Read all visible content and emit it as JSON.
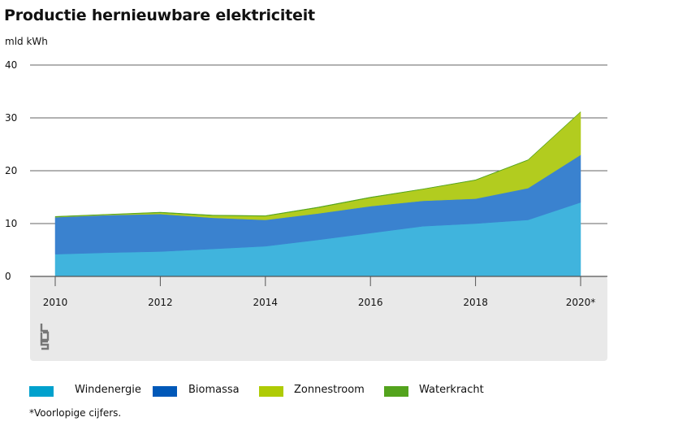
{
  "chart_data": {
    "type": "area",
    "title": "Productie hernieuwbare elektriciteit",
    "ylabel": "mld kWh",
    "xlabel": "",
    "x": [
      2010,
      2011,
      2012,
      2013,
      2014,
      2015,
      2016,
      2017,
      2018,
      2019,
      2020
    ],
    "x_tick_labels": [
      "2010",
      "2012",
      "2014",
      "2016",
      "2018",
      "2020*"
    ],
    "y_ticks": [
      "0",
      "10",
      "20",
      "30",
      "40"
    ],
    "ylim": [
      0,
      40
    ],
    "stacked": true,
    "grid": true,
    "legend_position": "bottom",
    "series": [
      {
        "name": "Windenergie",
        "color": "#40b4dd",
        "values": [
          4.2,
          4.5,
          4.7,
          5.2,
          5.7,
          6.9,
          8.2,
          9.5,
          10.0,
          10.7,
          14.0
        ]
      },
      {
        "name": "Biomassa",
        "color": "#3a82cf",
        "values": [
          7.0,
          7.1,
          7.1,
          5.9,
          5.0,
          5.0,
          5.1,
          4.8,
          4.7,
          6.0,
          9.0
        ]
      },
      {
        "name": "Zonnestroom",
        "color": "#b2cc1f",
        "values": [
          0.05,
          0.1,
          0.25,
          0.4,
          0.7,
          1.1,
          1.6,
          2.2,
          3.5,
          5.3,
          8.1
        ]
      },
      {
        "name": "Waterkracht",
        "color": "#53a31d",
        "values": [
          0.1,
          0.06,
          0.1,
          0.1,
          0.1,
          0.1,
          0.1,
          0.06,
          0.07,
          0.08,
          0.07
        ]
      }
    ],
    "legend_colors": {
      "Windenergie": "#00a1cd",
      "Biomassa": "#0058b8",
      "Zonnestroom": "#afcb05",
      "Waterkracht": "#53a31d"
    }
  },
  "footnote": "*Voorlopige cijfers.",
  "logo_text": "cbs",
  "colors": {
    "background_band": "#e9e9e9",
    "grid": "#666666"
  }
}
